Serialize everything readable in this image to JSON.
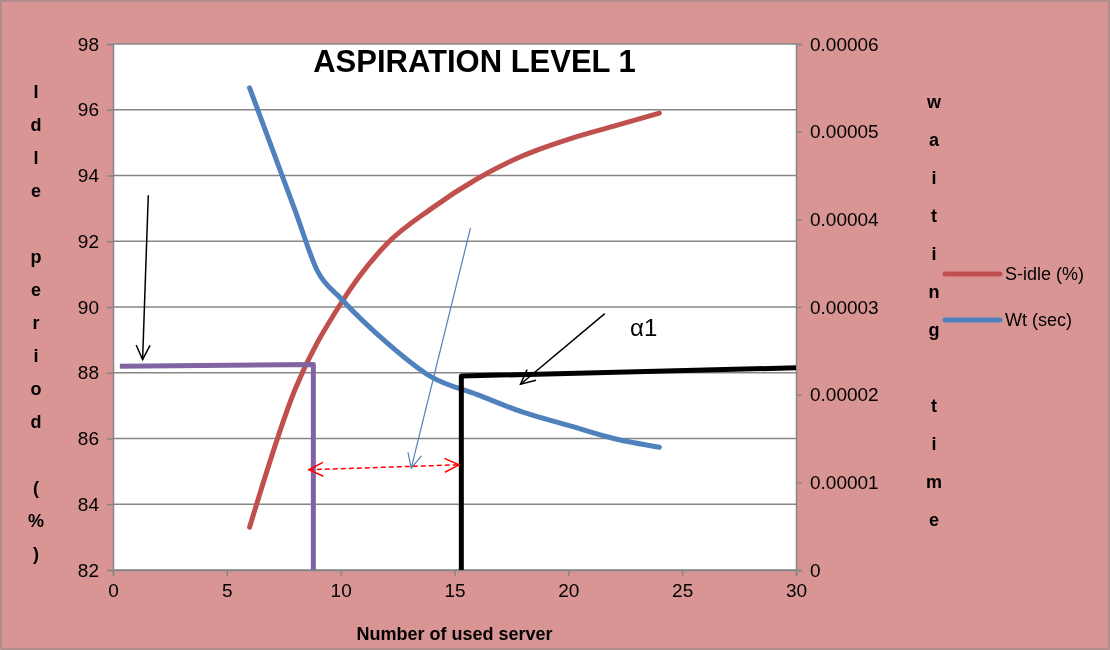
{
  "chart_data": {
    "type": "line",
    "title": "ASPIRATION  LEVEL 1",
    "xlabel": "Number of used server",
    "ylabel": "Idle period (%)",
    "y2label": "waiting time",
    "xlim": [
      0,
      30
    ],
    "xticks": [
      0,
      5,
      10,
      15,
      20,
      25,
      30
    ],
    "ylim": [
      82,
      98
    ],
    "yticks": [
      82,
      84,
      86,
      88,
      90,
      92,
      94,
      96,
      98
    ],
    "y2lim": [
      0,
      6e-05
    ],
    "y2ticks": [
      0,
      {
        "value": 1e-05,
        "label": "0.00001"
      },
      {
        "value": 2e-05,
        "label": "0.00002"
      },
      {
        "value": 3e-05,
        "label": "0.00003"
      },
      {
        "value": 4e-05,
        "label": "0.00004"
      },
      {
        "value": 5e-05,
        "label": "0.00005"
      },
      {
        "value": 6e-05,
        "label": "0.00006"
      }
    ],
    "grid": "y",
    "legend": "right",
    "marker": "none",
    "series": [
      {
        "name": "S-idle (%)",
        "color": "#c0504d",
        "x": [
          6,
          8,
          10,
          12,
          14,
          16,
          18,
          20,
          22,
          24
        ],
        "values": [
          83.3,
          87.5,
          90.1,
          91.9,
          93.0,
          93.9,
          94.6,
          95.1,
          95.5,
          95.9
        ]
      },
      {
        "name": "Wt (sec)",
        "color": "#4f81bd",
        "axis": "y2",
        "x": [
          6,
          8,
          9,
          10,
          12,
          14,
          16,
          18,
          20,
          22,
          24
        ],
        "values": [
          5.5e-05,
          4.1e-05,
          3.4e-05,
          3.1e-05,
          2.6e-05,
          2.2e-05,
          2e-05,
          1.8e-05,
          1.65e-05,
          1.5e-05,
          1.4e-05
        ]
      },
      {
        "color": "#8064a2",
        "x": [
          0.3,
          8.8,
          8.8
        ],
        "values": [
          88.2,
          88.25,
          82
        ]
      },
      {
        "color": "#000000",
        "x": [
          15.3,
          15.3,
          30
        ],
        "values": [
          82,
          87.9,
          88.15
        ]
      }
    ],
    "annotations": [
      "α1"
    ]
  }
}
